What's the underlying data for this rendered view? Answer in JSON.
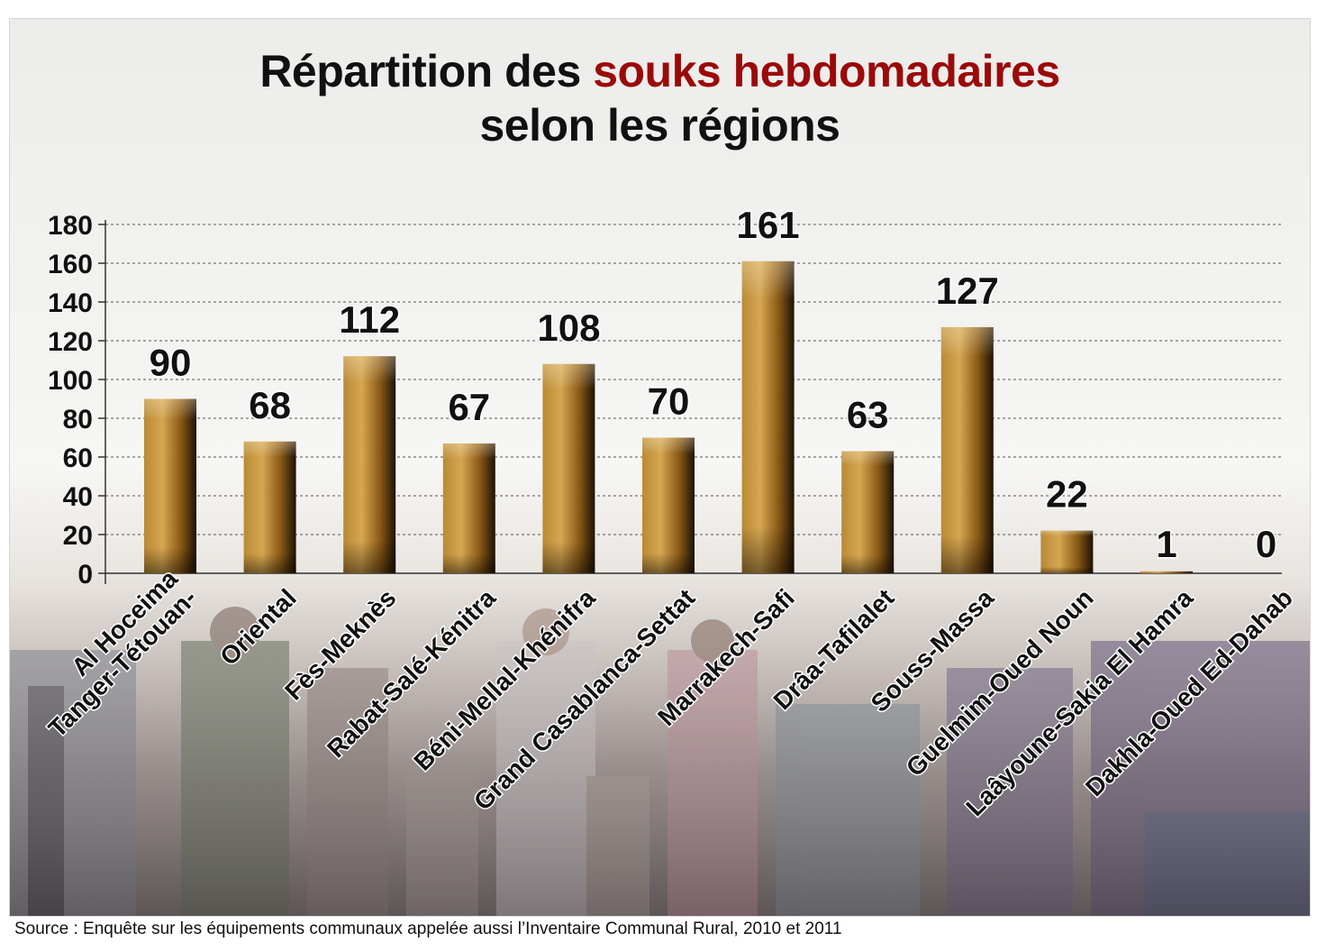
{
  "title": {
    "part1": "Répartition des",
    "accent": "souks hebdomadaires",
    "line2": "selon les régions"
  },
  "colors": {
    "accent": "#9b0a0a",
    "bar_light": "#d2a24a",
    "bar_mid": "#a8731f",
    "bar_dark": "#1e1204"
  },
  "chart_data": {
    "type": "bar",
    "categories": [
      "Tanger-Tétouan-Al Hoceima",
      "Oriental",
      "Fès-Meknès",
      "Rabat-Salé-Kénitra",
      "Béni-Mellal-Khénifra",
      "Grand Casablanca-Settat",
      "Marrakech-Safi",
      "Drâa-Tafilalet",
      "Souss-Massa",
      "Guelmim-Oued Noun",
      "Laâyoune-Sakia El Hamra",
      "Dakhla-Oued Ed-Dahab"
    ],
    "category_lines": [
      [
        "Tanger-Tétouan-",
        "Al Hoceima"
      ],
      [
        "Oriental"
      ],
      [
        "Fès-Meknès"
      ],
      [
        "Rabat-Salé-Kénitra"
      ],
      [
        "Béni-Mellal-Khénifra"
      ],
      [
        "Grand Casablanca-Settat"
      ],
      [
        "Marrakech-Safi"
      ],
      [
        "Drâa-Tafilalet"
      ],
      [
        "Souss-Massa"
      ],
      [
        "Guelmim-Oued Noun"
      ],
      [
        "Laâyoune-Sakia El Hamra"
      ],
      [
        "Dakhla-Oued Ed-Dahab"
      ]
    ],
    "values": [
      90,
      68,
      112,
      67,
      108,
      70,
      161,
      63,
      127,
      22,
      1,
      0
    ],
    "yticks": [
      0,
      20,
      40,
      60,
      80,
      100,
      120,
      140,
      160,
      180
    ],
    "ylim": [
      0,
      180
    ],
    "grid": true,
    "legend": "none",
    "xlabel": "",
    "ylabel": ""
  },
  "source": "Source : Enquête sur les équipements communaux appelée aussi l’Inventaire Communal Rural, 2010 et 2011"
}
